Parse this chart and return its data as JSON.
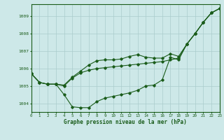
{
  "title": "Graphe pression niveau de la mer (hPa)",
  "background_color": "#cde8e8",
  "line_color": "#1a5c1a",
  "grid_color": "#aacccc",
  "xlim": [
    0,
    23
  ],
  "ylim": [
    1003.5,
    1009.7
  ],
  "yticks": [
    1004,
    1005,
    1006,
    1007,
    1008,
    1009
  ],
  "xticks": [
    0,
    1,
    2,
    3,
    4,
    5,
    6,
    7,
    8,
    9,
    10,
    11,
    12,
    13,
    14,
    15,
    16,
    17,
    18,
    19,
    20,
    21,
    22,
    23
  ],
  "xtick_labels": [
    "0",
    "1",
    "2",
    "3",
    "4",
    "5",
    "6",
    "7",
    "8",
    "9",
    "10",
    "11",
    "12",
    "13",
    "14",
    "15",
    "16",
    "17",
    "18",
    "19",
    "20",
    "21",
    "22",
    "23"
  ],
  "series1": [
    1005.7,
    1005.2,
    1005.1,
    1005.1,
    1004.5,
    1003.8,
    1003.75,
    1003.75,
    1004.1,
    1004.3,
    1004.4,
    1004.5,
    1004.6,
    1004.75,
    1005.0,
    1005.05,
    1005.35,
    1006.65,
    1006.5,
    1007.4,
    1008.0,
    1008.65,
    1009.2,
    1009.45
  ],
  "series2": [
    1005.7,
    1005.2,
    1005.1,
    1005.1,
    1005.05,
    1005.5,
    1005.85,
    1006.2,
    1006.45,
    1006.5,
    1006.5,
    1006.55,
    1006.7,
    1006.8,
    1006.65,
    1006.6,
    1006.6,
    1006.85,
    1006.7,
    1007.4,
    1008.0,
    1008.65,
    1009.2,
    1009.45
  ],
  "series3": [
    1005.7,
    1005.2,
    1005.1,
    1005.1,
    1005.0,
    1005.45,
    1005.75,
    1005.9,
    1006.0,
    1006.05,
    1006.1,
    1006.15,
    1006.2,
    1006.25,
    1006.3,
    1006.35,
    1006.4,
    1006.5,
    1006.6,
    1007.4,
    1008.0,
    1008.65,
    1009.2,
    1009.45
  ]
}
